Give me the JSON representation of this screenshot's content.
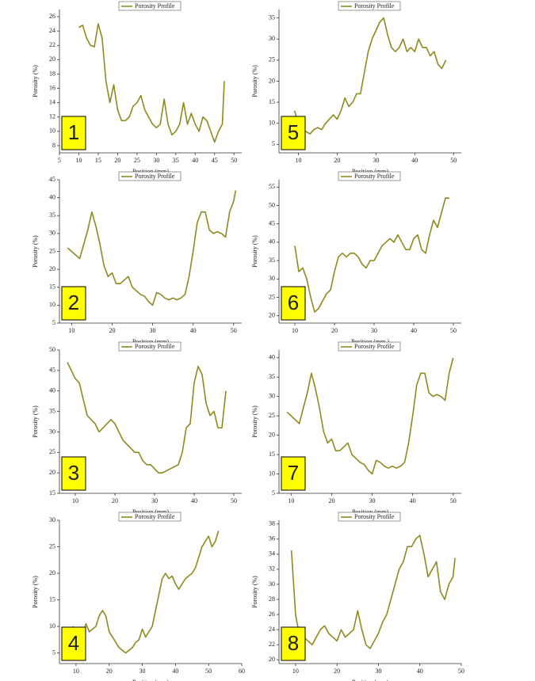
{
  "chart_data": [
    {
      "type": "line",
      "panel_label": "1",
      "x_label": "Position (mm)",
      "y_label": "Porosity (%)",
      "xlim": [
        5,
        52
      ],
      "xticks": [
        5,
        10,
        15,
        20,
        25,
        30,
        35,
        40,
        45,
        50
      ],
      "ylim": [
        7,
        27
      ],
      "yticks": [
        8,
        10,
        12,
        14,
        16,
        18,
        20,
        22,
        24,
        26
      ],
      "x": [
        10,
        11,
        12,
        13,
        14,
        15,
        16,
        17,
        18,
        19,
        20,
        21,
        22,
        23,
        24,
        25,
        26,
        27,
        28,
        29,
        30,
        31,
        32,
        33,
        34,
        35,
        36,
        37,
        38,
        39,
        40,
        41,
        42,
        43,
        44,
        45,
        46,
        47,
        47.5
      ],
      "series": [
        {
          "name": "Porosity Profile",
          "color": "#8f8a1e",
          "values": [
            24.5,
            24.8,
            23,
            22,
            21.8,
            25,
            23,
            17,
            14,
            16.5,
            13,
            11.5,
            11.5,
            12,
            13.5,
            14,
            15,
            13,
            12,
            11,
            10.5,
            11,
            14.5,
            11,
            9.5,
            10,
            11,
            14,
            11,
            12.5,
            11,
            10,
            12,
            11.5,
            10,
            8.5,
            10,
            11,
            17
          ]
        }
      ]
    },
    {
      "type": "line",
      "panel_label": "2",
      "x_label": "Position (mm)",
      "y_label": "Porosity (%)",
      "xlim": [
        7,
        52
      ],
      "xticks": [
        10,
        20,
        30,
        40,
        50
      ],
      "ylim": [
        5,
        45
      ],
      "yticks": [
        5,
        10,
        15,
        20,
        25,
        30,
        35,
        40,
        45
      ],
      "x": [
        9,
        10,
        11,
        12,
        13,
        14,
        15,
        16,
        17,
        18,
        19,
        20,
        21,
        22,
        23,
        24,
        25,
        26,
        27,
        28,
        29,
        30,
        31,
        32,
        33,
        34,
        35,
        36,
        37,
        38,
        39,
        40,
        41,
        42,
        43,
        44,
        45,
        46,
        47,
        48,
        49,
        50,
        50.5
      ],
      "series": [
        {
          "name": "Porosity Profile",
          "color": "#8f8a1e",
          "values": [
            26,
            25,
            24,
            23,
            27,
            31,
            36,
            32,
            27,
            21,
            18,
            19,
            16,
            16,
            17,
            18,
            15,
            14,
            13,
            12.5,
            11,
            10,
            13.5,
            13,
            12,
            11.5,
            12,
            11.5,
            12,
            13,
            18,
            25,
            33,
            36,
            36,
            31,
            30,
            30.5,
            30,
            29,
            36,
            39,
            42
          ]
        }
      ]
    },
    {
      "type": "line",
      "panel_label": "3",
      "x_label": "Position (mm)",
      "y_label": "Porosity (%)",
      "xlim": [
        6,
        52
      ],
      "xticks": [
        10,
        20,
        30,
        40,
        50
      ],
      "ylim": [
        15,
        50
      ],
      "yticks": [
        15,
        20,
        25,
        30,
        35,
        40,
        45,
        50
      ],
      "x": [
        8,
        9,
        10,
        11,
        12,
        13,
        14,
        15,
        16,
        17,
        18,
        19,
        20,
        21,
        22,
        23,
        24,
        25,
        26,
        27,
        28,
        29,
        30,
        31,
        32,
        33,
        34,
        35,
        36,
        37,
        38,
        39,
        40,
        41,
        42,
        43,
        44,
        45,
        46,
        47,
        48
      ],
      "series": [
        {
          "name": "Porosity Profile",
          "color": "#8f8a1e",
          "values": [
            47,
            45,
            43,
            42,
            38,
            34,
            33,
            32,
            30,
            31,
            32,
            33,
            32,
            30,
            28,
            27,
            26,
            25,
            25,
            23,
            22,
            22,
            21,
            20,
            20,
            20.5,
            21,
            21.5,
            22,
            25,
            31,
            32,
            42,
            46,
            44,
            37,
            34,
            35,
            31,
            31,
            40
          ]
        }
      ]
    },
    {
      "type": "line",
      "panel_label": "4",
      "x_label": "Position (mm)",
      "y_label": "Porosity (%)",
      "xlim": [
        5,
        60
      ],
      "xticks": [
        10,
        20,
        30,
        40,
        50,
        60
      ],
      "ylim": [
        3,
        30
      ],
      "yticks": [
        5,
        10,
        15,
        20,
        25,
        30
      ],
      "x": [
        9,
        10,
        11,
        12,
        13,
        14,
        15,
        16,
        17,
        18,
        19,
        20,
        21,
        22,
        23,
        24,
        25,
        26,
        27,
        28,
        29,
        30,
        31,
        32,
        33,
        34,
        35,
        36,
        37,
        38,
        39,
        40,
        41,
        42,
        43,
        44,
        45,
        46,
        47,
        48,
        49,
        50,
        51,
        52,
        53
      ],
      "series": [
        {
          "name": "Porosity Profile",
          "color": "#8f8a1e",
          "values": [
            10,
            9.5,
            8,
            8.5,
            10.5,
            9,
            9.5,
            10,
            12,
            13,
            12,
            9,
            8,
            7,
            6,
            5.5,
            5,
            5.5,
            6,
            7,
            7.5,
            9.5,
            8,
            9,
            10,
            13,
            16,
            19,
            20,
            19,
            19.5,
            18,
            17,
            18,
            19,
            19.5,
            20,
            21,
            23,
            25,
            26,
            27,
            25,
            26,
            28
          ]
        }
      ]
    },
    {
      "type": "line",
      "panel_label": "5",
      "x_label": "Position (mm)",
      "y_label": "Porosity (%)",
      "xlim": [
        5,
        52
      ],
      "xticks": [
        10,
        20,
        30,
        40,
        50
      ],
      "ylim": [
        3,
        37
      ],
      "yticks": [
        5,
        10,
        15,
        20,
        25,
        30,
        35
      ],
      "x": [
        9,
        10,
        11,
        12,
        13,
        14,
        15,
        16,
        17,
        18,
        19,
        20,
        21,
        22,
        23,
        24,
        25,
        26,
        27,
        28,
        29,
        30,
        31,
        32,
        33,
        34,
        35,
        36,
        37,
        38,
        39,
        40,
        41,
        42,
        43,
        44,
        45,
        46,
        47,
        48
      ],
      "series": [
        {
          "name": "Porosity Profile",
          "color": "#8f8a1e",
          "values": [
            13,
            10,
            8.5,
            8,
            7.5,
            8.5,
            9,
            8.5,
            10,
            11,
            12,
            11,
            13,
            16,
            14,
            15,
            17,
            17,
            22,
            27,
            30,
            32,
            34,
            35,
            31,
            28,
            27,
            28,
            30,
            27,
            28,
            27,
            30,
            28,
            28,
            26,
            27,
            24,
            23,
            25
          ]
        }
      ]
    },
    {
      "type": "line",
      "panel_label": "6",
      "x_label": "Position (mm )",
      "y_label": "Porosity (%)",
      "xlim": [
        6,
        52
      ],
      "xticks": [
        10,
        20,
        30,
        40,
        50
      ],
      "ylim": [
        18,
        57
      ],
      "yticks": [
        20,
        25,
        30,
        35,
        40,
        45,
        50,
        55
      ],
      "x": [
        10,
        11,
        12,
        13,
        14,
        15,
        16,
        17,
        18,
        19,
        20,
        21,
        22,
        23,
        24,
        25,
        26,
        27,
        28,
        29,
        30,
        31,
        32,
        33,
        34,
        35,
        36,
        37,
        38,
        39,
        40,
        41,
        42,
        43,
        44,
        45,
        46,
        47,
        48,
        49
      ],
      "series": [
        {
          "name": "Porosity Profile",
          "color": "#8f8a1e",
          "values": [
            39,
            32,
            33,
            30,
            25,
            21,
            22,
            24,
            26,
            27,
            32,
            36,
            37,
            36,
            37,
            37,
            36,
            34,
            33,
            35,
            35,
            37,
            39,
            40,
            41,
            40,
            42,
            40,
            38,
            38,
            41,
            42,
            38,
            37,
            42,
            46,
            44,
            48,
            52,
            52
          ]
        }
      ]
    },
    {
      "type": "line",
      "panel_label": "7",
      "x_label": "Position (mm)",
      "y_label": "Porosity (%)",
      "xlim": [
        7,
        52
      ],
      "xticks": [
        10,
        20,
        30,
        40,
        50
      ],
      "ylim": [
        5,
        42
      ],
      "yticks": [
        5,
        10,
        15,
        20,
        25,
        30,
        35,
        40
      ],
      "x": [
        9,
        10,
        11,
        12,
        13,
        14,
        15,
        16,
        17,
        18,
        19,
        20,
        21,
        22,
        23,
        24,
        25,
        26,
        27,
        28,
        29,
        30,
        31,
        32,
        33,
        34,
        35,
        36,
        37,
        38,
        39,
        40,
        41,
        42,
        43,
        44,
        45,
        46,
        47,
        48,
        49,
        50
      ],
      "series": [
        {
          "name": "Porosity Profile",
          "color": "#8f8a1e",
          "values": [
            26,
            25,
            24,
            23,
            27,
            31,
            36,
            32,
            27,
            21,
            18,
            19,
            16,
            16,
            17,
            18,
            15,
            14,
            13,
            12.5,
            11,
            10,
            13.5,
            13,
            12,
            11.5,
            12,
            11.5,
            12,
            13,
            18,
            25,
            33,
            36,
            36,
            31,
            30,
            30.5,
            30,
            29,
            36,
            40
          ]
        }
      ]
    },
    {
      "type": "line",
      "panel_label": "8",
      "x_label": "Position (mm)",
      "y_label": "Porosity (%)",
      "xlim": [
        6,
        50
      ],
      "xticks": [
        10,
        20,
        30,
        40,
        50
      ],
      "ylim": [
        19.5,
        38.5
      ],
      "yticks": [
        20,
        22,
        24,
        26,
        28,
        30,
        32,
        34,
        36,
        38
      ],
      "x": [
        9,
        10,
        11,
        12,
        13,
        14,
        15,
        16,
        17,
        18,
        19,
        20,
        21,
        22,
        23,
        24,
        25,
        26,
        27,
        28,
        29,
        30,
        31,
        32,
        33,
        34,
        35,
        36,
        37,
        38,
        39,
        40,
        41,
        42,
        43,
        44,
        45,
        46,
        47,
        48,
        48.5
      ],
      "series": [
        {
          "name": "Porosity Profile",
          "color": "#8f8a1e",
          "values": [
            34.5,
            26,
            23,
            23,
            22.5,
            22,
            23,
            24,
            24.5,
            23.5,
            23,
            22.5,
            24,
            23,
            23.5,
            24,
            26.5,
            24,
            22,
            21.5,
            22.5,
            23.5,
            25,
            26,
            28,
            30,
            32,
            33,
            35,
            35,
            36,
            36.5,
            34,
            31,
            32,
            33,
            29,
            28,
            30,
            31,
            33.5
          ]
        }
      ]
    }
  ]
}
